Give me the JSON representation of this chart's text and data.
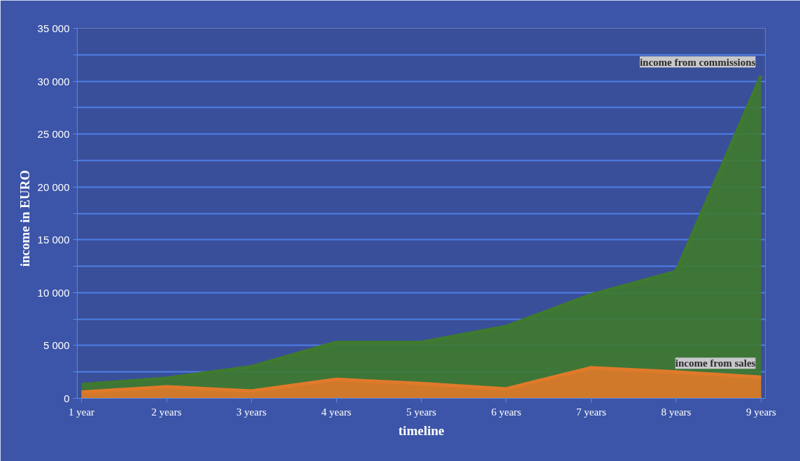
{
  "chart_data": {
    "type": "area",
    "xlabel": "timeline",
    "ylabel": "income in    EURO",
    "categories": [
      "1 year",
      "2 years",
      "3 years",
      "4 years",
      "5 years",
      "6 years",
      "7 years",
      "8 years",
      "9 years"
    ],
    "series": [
      {
        "name": "income from commissions",
        "color": "#3f7a2e",
        "values": [
          1300,
          1900,
          3000,
          5300,
          5300,
          6800,
          9800,
          12000,
          30500
        ]
      },
      {
        "name": "income from sales",
        "color": "#e07a2a",
        "values": [
          600,
          1100,
          700,
          1800,
          1400,
          900,
          2900,
          2500,
          2000
        ]
      }
    ],
    "ylim": [
      0,
      35000
    ],
    "yticks": [
      {
        "value": 0,
        "label": "0"
      },
      {
        "value": 2500,
        "label": null
      },
      {
        "value": 5000,
        "label": "5 000"
      },
      {
        "value": 7500,
        "label": null
      },
      {
        "value": 10000,
        "label": "10 000"
      },
      {
        "value": 12500,
        "label": null
      },
      {
        "value": 15000,
        "label": "15 000"
      },
      {
        "value": 17500,
        "label": null
      },
      {
        "value": 20000,
        "label": "20 000"
      },
      {
        "value": 22500,
        "label": null
      },
      {
        "value": 25000,
        "label": "25 000"
      },
      {
        "value": 27500,
        "label": null
      },
      {
        "value": 30000,
        "label": "30 000"
      },
      {
        "value": 32500,
        "label": null
      },
      {
        "value": 35000,
        "label": "35 000"
      }
    ],
    "grid": "y"
  }
}
